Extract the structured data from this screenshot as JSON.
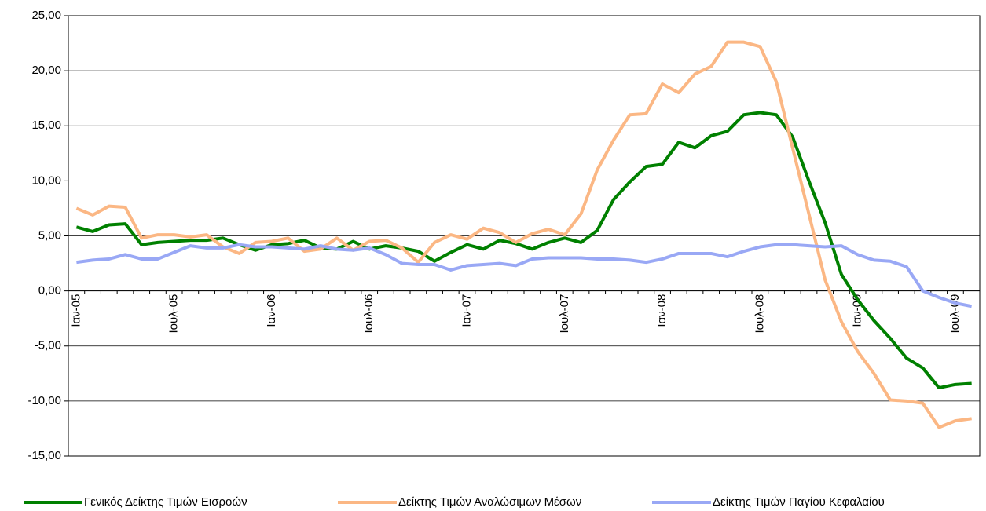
{
  "chart_data": {
    "type": "line",
    "categories": [
      "Ιαν-05",
      null,
      null,
      null,
      null,
      null,
      "Ιουλ-05",
      null,
      null,
      null,
      null,
      null,
      "Ιαν-06",
      null,
      null,
      null,
      null,
      null,
      "Ιουλ-06",
      null,
      null,
      null,
      null,
      null,
      "Ιαν-07",
      null,
      null,
      null,
      null,
      null,
      "Ιουλ-07",
      null,
      null,
      null,
      null,
      null,
      "Ιαν-08",
      null,
      null,
      null,
      null,
      null,
      "Ιουλ-08",
      null,
      null,
      null,
      null,
      null,
      "Ιαν-09",
      null,
      null,
      null,
      null,
      null,
      "Ιουλ-09",
      null
    ],
    "series": [
      {
        "name": "Γενικός Δείκτης Τιμών Εισροών",
        "color": "#008000",
        "values": [
          5.8,
          5.4,
          6.0,
          6.1,
          4.2,
          4.4,
          4.5,
          4.6,
          4.6,
          4.8,
          4.2,
          3.7,
          4.2,
          4.3,
          4.6,
          3.9,
          3.8,
          4.5,
          3.8,
          4.1,
          3.9,
          3.6,
          2.7,
          3.5,
          4.2,
          3.8,
          4.6,
          4.3,
          3.8,
          4.4,
          4.8,
          4.4,
          5.5,
          8.3,
          9.9,
          11.3,
          11.5,
          13.5,
          13.0,
          14.1,
          14.5,
          16.0,
          16.2,
          16.0,
          14.0,
          10.0,
          6.2,
          1.5,
          -0.8,
          -2.7,
          -4.3,
          -6.1,
          -7.0,
          -8.8,
          -8.5,
          -8.4
        ]
      },
      {
        "name": "Δείκτης Τιμών Αναλώσιμων Μέσων",
        "color": "#fbb784",
        "values": [
          7.5,
          6.9,
          7.7,
          7.6,
          4.8,
          5.1,
          5.1,
          4.9,
          5.1,
          4.0,
          3.4,
          4.4,
          4.5,
          4.8,
          3.6,
          3.8,
          4.8,
          3.7,
          4.5,
          4.6,
          3.9,
          2.6,
          4.4,
          5.1,
          4.7,
          5.7,
          5.3,
          4.4,
          5.2,
          5.6,
          5.1,
          7.0,
          11.0,
          13.7,
          16.0,
          16.1,
          18.8,
          18.0,
          19.7,
          20.4,
          22.6,
          22.6,
          22.2,
          19.0,
          13.0,
          7.0,
          1.0,
          -2.8,
          -5.5,
          -7.5,
          -9.9,
          -10.0,
          -10.2,
          -12.4,
          -11.8,
          -11.6
        ]
      },
      {
        "name": "Δείκτης Τιμών Παγίου Κεφαλαίου",
        "color": "#99a8f5",
        "values": [
          2.6,
          2.8,
          2.9,
          3.3,
          2.9,
          2.9,
          3.5,
          4.1,
          3.9,
          3.9,
          4.2,
          4.0,
          4.0,
          3.9,
          3.8,
          4.1,
          3.8,
          3.7,
          3.9,
          3.3,
          2.5,
          2.4,
          2.4,
          1.9,
          2.3,
          2.4,
          2.5,
          2.3,
          2.9,
          3.0,
          3.0,
          3.0,
          2.9,
          2.9,
          2.8,
          2.6,
          2.9,
          3.4,
          3.4,
          3.4,
          3.1,
          3.6,
          4.0,
          4.2,
          4.2,
          4.1,
          4.0,
          4.1,
          3.3,
          2.8,
          2.7,
          2.2,
          0.0,
          -0.6,
          -1.1,
          -1.4
        ]
      }
    ],
    "ylim": [
      -15,
      25
    ],
    "yticks": [
      {
        "value": -15,
        "label": "-15,00"
      },
      {
        "value": -10,
        "label": "-10,00"
      },
      {
        "value": -5,
        "label": "-5,00"
      },
      {
        "value": 0,
        "label": "0,00"
      },
      {
        "value": 5,
        "label": "5,00"
      },
      {
        "value": 10,
        "label": "10,00"
      },
      {
        "value": 15,
        "label": "15,00"
      },
      {
        "value": 20,
        "label": "20,00"
      },
      {
        "value": 25,
        "label": "25,00"
      }
    ],
    "grid": true,
    "legend": "bottom"
  }
}
